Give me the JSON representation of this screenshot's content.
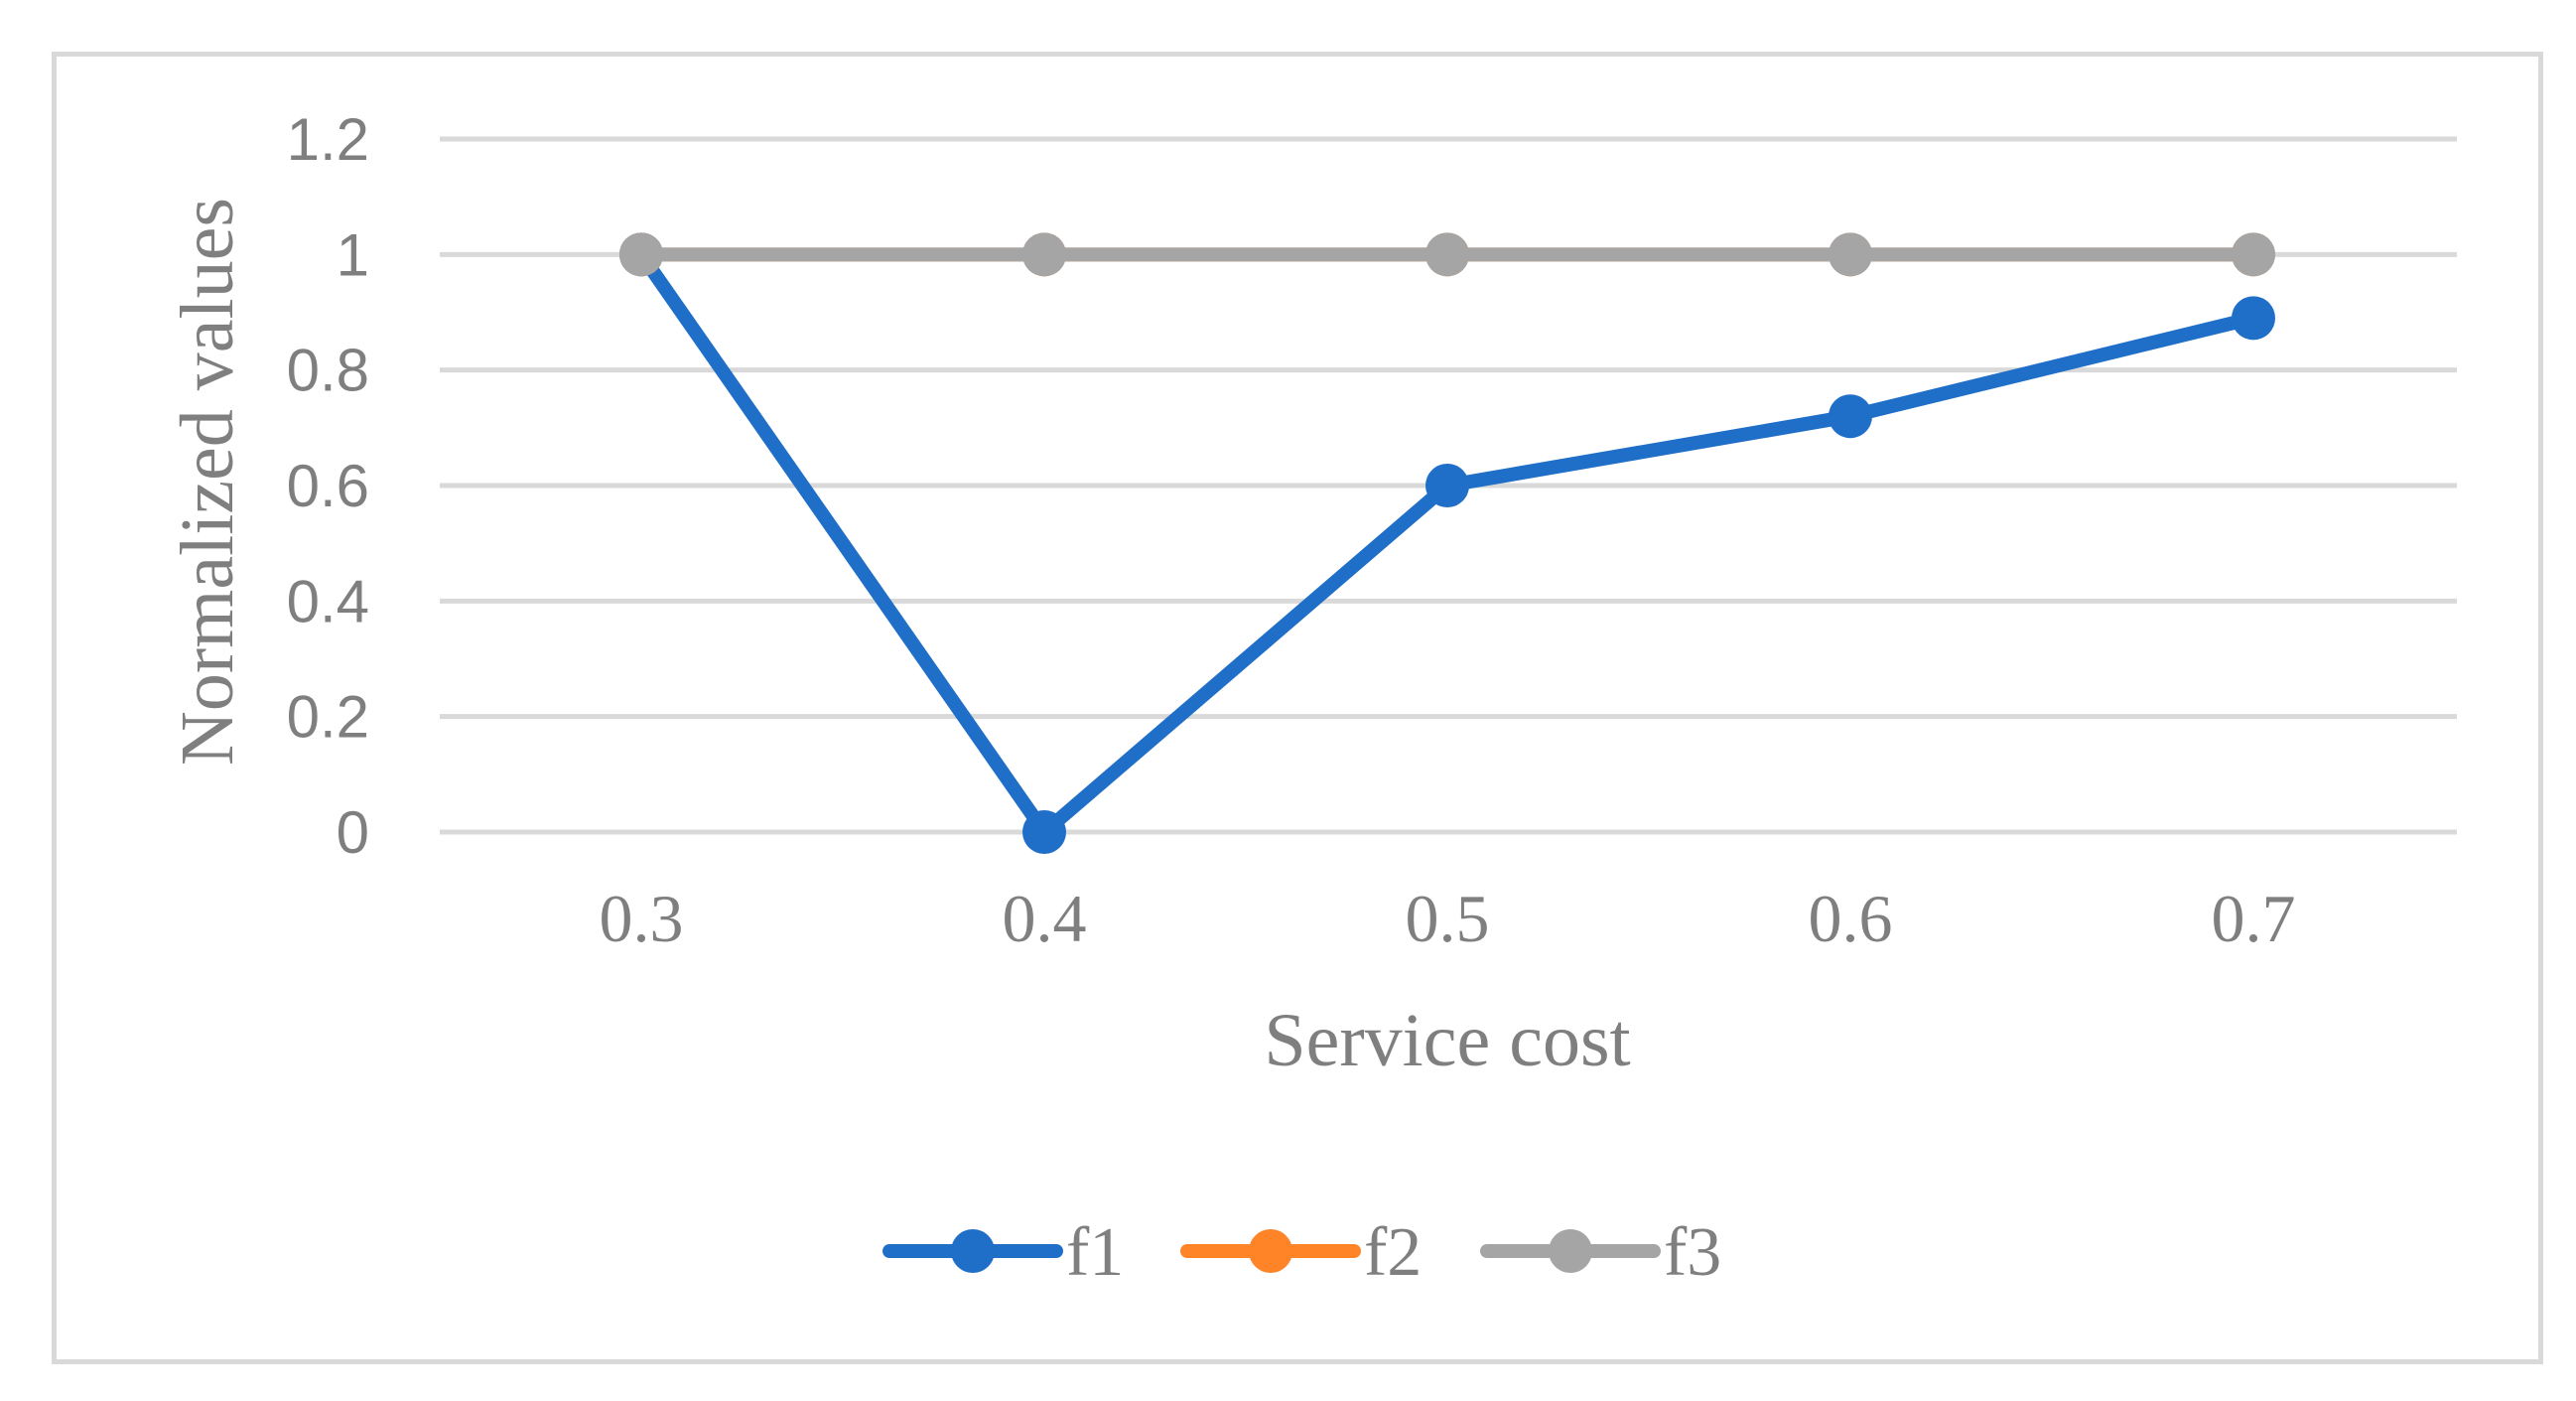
{
  "chart_data": {
    "type": "line",
    "x": [
      0.3,
      0.4,
      0.5,
      0.6,
      0.7
    ],
    "x_tick_labels": [
      "0.3",
      "0.4",
      "0.5",
      "0.6",
      "0.7"
    ],
    "y_tick_labels": [
      "0",
      "0.2",
      "0.4",
      "0.6",
      "0.8",
      "1",
      "1.2"
    ],
    "ylim": [
      0,
      1.2
    ],
    "xlabel": "Service cost",
    "ylabel": "Normalized values",
    "grid": true,
    "legend_position": "bottom",
    "series": [
      {
        "name": "f1",
        "color": "#1f6fc9",
        "values": [
          1,
          0,
          0.6,
          0.72,
          0.89
        ]
      },
      {
        "name": "f2",
        "color": "#ff8327",
        "values": [
          1,
          1,
          1,
          1,
          1
        ]
      },
      {
        "name": "f3",
        "color": "#a5a5a5",
        "values": [
          1,
          1,
          1,
          1,
          1
        ]
      }
    ]
  }
}
